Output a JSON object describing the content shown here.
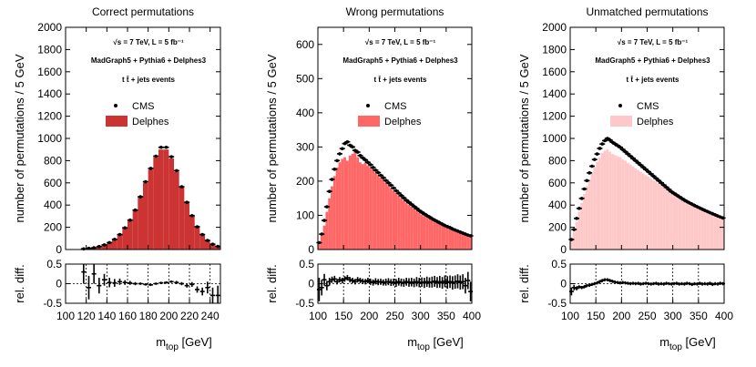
{
  "chart_data": [
    {
      "type": "bar",
      "title": "Correct permutations",
      "xlabel_sym": "m",
      "xlabel_sub": "top",
      "xlabel_unit": "[GeV]",
      "ylabel": "number of permutations / 5 GeV",
      "ratio_ylabel": "rel. diff.",
      "xlim": [
        100,
        250
      ],
      "ylim": [
        0,
        2000
      ],
      "ratio_ylim": [
        -0.5,
        0.5
      ],
      "xticks": [
        100,
        120,
        140,
        160,
        180,
        200,
        220,
        240
      ],
      "yticks": [
        0,
        200,
        400,
        600,
        800,
        1000,
        1200,
        1400,
        1600,
        1800,
        2000
      ],
      "ratio_yticks": [
        -0.5,
        0,
        0.5
      ],
      "ratio_gridx": [
        120,
        140,
        160,
        180,
        200,
        220,
        240
      ],
      "legend_line1": "√s = 7 TeV, L = 5 fb⁻¹",
      "legend_line2": "MadGraph5 + Pythia6 + Delphes3",
      "legend_line3": "t t̄ + jets  events",
      "legend_cms": "CMS",
      "legend_delphes": "Delphes",
      "fill_color": "#cc3333",
      "bin_width": 5,
      "bin_start": 100,
      "delphes": [
        0,
        0,
        0,
        5,
        10,
        15,
        25,
        40,
        60,
        90,
        130,
        190,
        260,
        350,
        470,
        600,
        720,
        830,
        900,
        900,
        820,
        700,
        560,
        420,
        300,
        200,
        130,
        80,
        45,
        25
      ],
      "cms": [
        0,
        0,
        0,
        6,
        11,
        16,
        27,
        42,
        62,
        92,
        135,
        195,
        265,
        355,
        475,
        610,
        730,
        840,
        920,
        920,
        835,
        710,
        565,
        425,
        305,
        205,
        135,
        82,
        48,
        28
      ],
      "ratio": [
        0,
        0,
        0,
        0.3,
        -0.1,
        0.25,
        -0.05,
        0.1,
        0.03,
        0.02,
        0.05,
        0.03,
        0.02,
        0.0,
        0.0,
        -0.02,
        -0.03,
        0.0,
        0.02,
        0.03,
        0.05,
        0.03,
        0.0,
        -0.05,
        -0.02,
        -0.15,
        -0.2,
        -0.1,
        -0.3,
        -0.3
      ],
      "ratio_err": [
        0,
        0,
        0,
        0.3,
        0.3,
        0.25,
        0.2,
        0.15,
        0.12,
        0.1,
        0.08,
        0.06,
        0.05,
        0.04,
        0.03,
        0.03,
        0.03,
        0.03,
        0.03,
        0.03,
        0.03,
        0.04,
        0.04,
        0.05,
        0.06,
        0.08,
        0.1,
        0.15,
        0.2,
        0.25
      ]
    },
    {
      "type": "bar",
      "title": "Wrong permutations",
      "xlabel_sym": "m",
      "xlabel_sub": "top",
      "xlabel_unit": "[GeV]",
      "ylabel": "number of permutations / 5 GeV",
      "ratio_ylabel": "rel. diff.",
      "xlim": [
        100,
        400
      ],
      "ylim": [
        0,
        650
      ],
      "ratio_ylim": [
        -0.5,
        0.5
      ],
      "xticks": [
        100,
        150,
        200,
        250,
        300,
        350,
        400
      ],
      "yticks": [
        0,
        100,
        200,
        300,
        400,
        500,
        600
      ],
      "ratio_yticks": [
        -0.5,
        0,
        0.5
      ],
      "ratio_gridx": [
        150,
        200,
        250,
        300,
        350
      ],
      "legend_line1": "√s = 7 TeV, L = 5 fb⁻¹",
      "legend_line2": "MadGraph5 + Pythia6 + Delphes3",
      "legend_line3": "t t̄ + jets  events",
      "legend_cms": "CMS",
      "legend_delphes": "Delphes",
      "fill_color": "#ff6666",
      "bin_width": 5,
      "bin_start": 100,
      "delphes": [
        15,
        40,
        70,
        110,
        150,
        185,
        215,
        240,
        255,
        265,
        270,
        260,
        275,
        280,
        290,
        270,
        255,
        250,
        255,
        245,
        240,
        235,
        225,
        218,
        210,
        205,
        195,
        188,
        180,
        172,
        165,
        158,
        150,
        143,
        137,
        130,
        125,
        120,
        113,
        108,
        102,
        97,
        93,
        90,
        85,
        82,
        78,
        74,
        70,
        67,
        64,
        61,
        58,
        55,
        52,
        49,
        46,
        43,
        40,
        38
      ],
      "cms": [
        20,
        45,
        85,
        125,
        170,
        205,
        235,
        260,
        280,
        295,
        310,
        315,
        305,
        300,
        290,
        285,
        275,
        268,
        262,
        255,
        248,
        240,
        232,
        225,
        217,
        210,
        202,
        195,
        188,
        180,
        172,
        165,
        158,
        151,
        144,
        138,
        132,
        126,
        120,
        114,
        109,
        104,
        99,
        95,
        90,
        86,
        82,
        78,
        74,
        70,
        67,
        64,
        60,
        57,
        54,
        51,
        48,
        45,
        42,
        40
      ],
      "ratio": [
        -0.15,
        -0.1,
        0.1,
        -0.05,
        0.05,
        0.1,
        0.12,
        0.05,
        0.1,
        0.08,
        0.12,
        0.15,
        0.1,
        0.08,
        0.05,
        0.1,
        0.08,
        0.06,
        0.05,
        0.08,
        0.05,
        0.03,
        0.06,
        0.04,
        0.05,
        0.03,
        0.04,
        0.05,
        0.03,
        0.04,
        0.02,
        0.05,
        0.03,
        0.02,
        0.05,
        0.03,
        0.04,
        0.02,
        0.05,
        0.03,
        0.04,
        0.02,
        0.05,
        0.03,
        0.04,
        0.06,
        0.03,
        0.05,
        0.02,
        0.06,
        0.03,
        0.05,
        0.02,
        0.04,
        0.06,
        0.03,
        0.05,
        -0.05,
        0.08,
        -0.2
      ],
      "ratio_err": [
        0.3,
        0.2,
        0.15,
        0.12,
        0.1,
        0.08,
        0.08,
        0.07,
        0.07,
        0.07,
        0.07,
        0.07,
        0.07,
        0.07,
        0.07,
        0.07,
        0.07,
        0.07,
        0.07,
        0.07,
        0.08,
        0.08,
        0.08,
        0.08,
        0.08,
        0.08,
        0.09,
        0.09,
        0.09,
        0.09,
        0.1,
        0.1,
        0.1,
        0.1,
        0.1,
        0.11,
        0.11,
        0.11,
        0.12,
        0.12,
        0.12,
        0.13,
        0.13,
        0.13,
        0.14,
        0.14,
        0.14,
        0.15,
        0.15,
        0.15,
        0.16,
        0.16,
        0.17,
        0.17,
        0.18,
        0.18,
        0.19,
        0.2,
        0.22,
        0.25
      ]
    },
    {
      "type": "bar",
      "title": "Unmatched permutations",
      "xlabel_sym": "m",
      "xlabel_sub": "top",
      "xlabel_unit": "[GeV]",
      "ylabel": "number of permutations / 5 GeV",
      "ratio_ylabel": "rel. diff.",
      "xlim": [
        100,
        400
      ],
      "ylim": [
        0,
        2000
      ],
      "ratio_ylim": [
        -0.5,
        0.5
      ],
      "xticks": [
        100,
        150,
        200,
        250,
        300,
        350,
        400
      ],
      "yticks": [
        0,
        200,
        400,
        600,
        800,
        1000,
        1200,
        1400,
        1600,
        1800,
        2000
      ],
      "ratio_yticks": [
        -0.5,
        0,
        0.5
      ],
      "ratio_gridx": [
        150,
        200,
        250,
        300,
        350
      ],
      "legend_line1": "√s = 7 TeV, L = 5 fb⁻¹",
      "legend_line2": "MadGraph5 + Pythia6 + Delphes3",
      "legend_line3": "t t̄ + jets  events",
      "legend_cms": "CMS",
      "legend_delphes": "Delphes",
      "fill_color": "#ffc8c8",
      "bin_width": 5,
      "bin_start": 100,
      "delphes": [
        80,
        160,
        250,
        340,
        420,
        500,
        570,
        630,
        690,
        740,
        790,
        830,
        870,
        890,
        900,
        880,
        860,
        850,
        840,
        830,
        810,
        800,
        780,
        765,
        750,
        730,
        715,
        700,
        685,
        670,
        655,
        640,
        625,
        610,
        595,
        580,
        565,
        550,
        535,
        520,
        505,
        490,
        475,
        460,
        445,
        432,
        420,
        408,
        396,
        385,
        374,
        363,
        352,
        342,
        332,
        322,
        312,
        302,
        293,
        284
      ],
      "cms": [
        90,
        180,
        280,
        370,
        460,
        545,
        620,
        690,
        750,
        810,
        860,
        910,
        950,
        980,
        1000,
        985,
        965,
        950,
        935,
        920,
        900,
        880,
        860,
        840,
        820,
        800,
        780,
        760,
        740,
        720,
        700,
        680,
        660,
        640,
        620,
        600,
        580,
        560,
        540,
        520,
        505,
        490,
        475,
        460,
        445,
        432,
        420,
        408,
        396,
        385,
        374,
        363,
        352,
        342,
        332,
        322,
        312,
        302,
        293,
        284
      ],
      "ratio": [
        -0.2,
        -0.1,
        -0.12,
        -0.08,
        -0.1,
        -0.08,
        -0.05,
        -0.04,
        -0.02,
        0.0,
        0.02,
        0.05,
        0.08,
        0.1,
        0.1,
        0.08,
        0.06,
        0.04,
        0.03,
        0.02,
        0.03,
        0.02,
        0.01,
        0.0,
        0.01,
        0.0,
        0.01,
        -0.01,
        0.0,
        0.01,
        0.0,
        -0.01,
        0.0,
        0.01,
        -0.01,
        0.0,
        -0.01,
        0.01,
        0.0,
        -0.01,
        0.0,
        0.01,
        -0.01,
        0.0,
        -0.01,
        0.01,
        0.0,
        -0.02,
        0.0,
        -0.01,
        0.01,
        -0.01,
        0.0,
        -0.01,
        0.01,
        -0.02,
        0.0,
        -0.01,
        0.01,
        0.0
      ],
      "ratio_err": [
        0.1,
        0.07,
        0.05,
        0.04,
        0.04,
        0.04,
        0.04,
        0.04,
        0.04,
        0.04,
        0.04,
        0.04,
        0.04,
        0.04,
        0.04,
        0.04,
        0.04,
        0.04,
        0.04,
        0.04,
        0.04,
        0.04,
        0.04,
        0.04,
        0.04,
        0.04,
        0.04,
        0.04,
        0.04,
        0.04,
        0.04,
        0.04,
        0.04,
        0.04,
        0.04,
        0.04,
        0.04,
        0.04,
        0.04,
        0.04,
        0.04,
        0.04,
        0.04,
        0.04,
        0.04,
        0.04,
        0.04,
        0.04,
        0.04,
        0.04,
        0.04,
        0.04,
        0.04,
        0.04,
        0.04,
        0.04,
        0.04,
        0.04,
        0.04,
        0.04
      ]
    }
  ]
}
